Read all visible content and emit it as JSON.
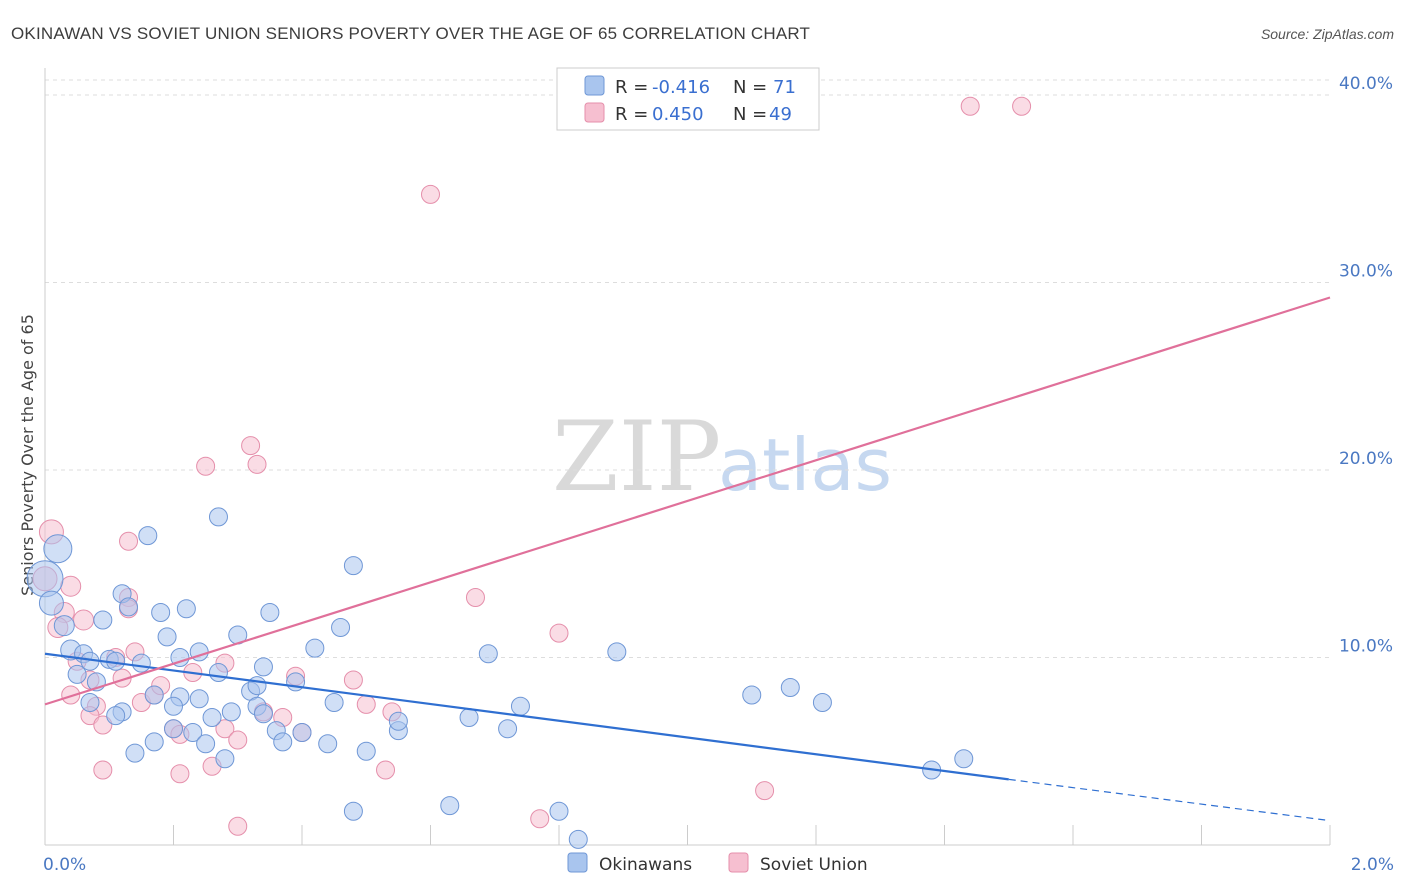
{
  "chart_data": {
    "type": "scatter",
    "title": "OKINAWAN VS SOVIET UNION SENIORS POVERTY OVER THE AGE OF 65 CORRELATION CHART",
    "source": "Source: ZipAtlas.com",
    "xlabel": "",
    "ylabel": "Seniors Poverty Over the Age of 65",
    "xlim": [
      0,
      2.0
    ],
    "ylim": [
      0,
      40.8
    ],
    "x_tick_labels": [
      "0.0%",
      "2.0%"
    ],
    "y_ticks": [
      10,
      20,
      30,
      40
    ],
    "y_tick_labels": [
      "10.0%",
      "20.0%",
      "30.0%",
      "40.0%"
    ],
    "watermark": {
      "zip": "ZIP",
      "atlas": "atlas"
    },
    "colors": {
      "okinawans_fill": "#a9c5ee",
      "okinawans_stroke": "#6f97d6",
      "okinawans_line": "#2f6fd1",
      "soviet_fill": "#f6bfd0",
      "soviet_stroke": "#e58fab",
      "soviet_line": "#e0709a",
      "grid": "#dddddd"
    },
    "legend": {
      "r_label": "R =",
      "n_label": "N =",
      "entries": [
        {
          "r": "-0.416",
          "n": "71"
        },
        {
          "r": "0.450",
          "n": "49"
        }
      ]
    },
    "series": [
      {
        "name": "Okinawans",
        "trend": {
          "x0": 0.0,
          "y0": 10.2,
          "x1": 1.5,
          "y1": 3.5,
          "dash_to_x": 2.0,
          "dash_to_y": 1.3
        },
        "points": [
          [
            0.0,
            14.2,
            18
          ],
          [
            0.02,
            15.8,
            14
          ],
          [
            0.01,
            12.9,
            12
          ],
          [
            0.03,
            11.7,
            10
          ],
          [
            0.04,
            10.4,
            10
          ],
          [
            0.06,
            10.2,
            9
          ],
          [
            0.05,
            9.1,
            9
          ],
          [
            0.09,
            12.0,
            9
          ],
          [
            0.07,
            9.8,
            9
          ],
          [
            0.08,
            8.7,
            9
          ],
          [
            0.07,
            7.6,
            9
          ],
          [
            0.1,
            9.9,
            9
          ],
          [
            0.11,
            9.8,
            9
          ],
          [
            0.12,
            7.1,
            9
          ],
          [
            0.11,
            6.9,
            9
          ],
          [
            0.12,
            13.4,
            9
          ],
          [
            0.13,
            12.7,
            9
          ],
          [
            0.15,
            9.7,
            9
          ],
          [
            0.16,
            16.5,
            9
          ],
          [
            0.18,
            12.4,
            9
          ],
          [
            0.19,
            11.1,
            9
          ],
          [
            0.17,
            8.0,
            9
          ],
          [
            0.14,
            4.9,
            9
          ],
          [
            0.17,
            5.5,
            9
          ],
          [
            0.2,
            6.2,
            9
          ],
          [
            0.21,
            10.0,
            9
          ],
          [
            0.22,
            12.6,
            9
          ],
          [
            0.21,
            7.9,
            9
          ],
          [
            0.23,
            6.0,
            9
          ],
          [
            0.24,
            7.8,
            9
          ],
          [
            0.24,
            10.3,
            9
          ],
          [
            0.25,
            5.4,
            9
          ],
          [
            0.26,
            6.8,
            9
          ],
          [
            0.27,
            17.5,
            9
          ],
          [
            0.27,
            9.2,
            9
          ],
          [
            0.28,
            4.6,
            9
          ],
          [
            0.29,
            7.1,
            9
          ],
          [
            0.3,
            11.2,
            9
          ],
          [
            0.32,
            8.2,
            9
          ],
          [
            0.33,
            7.4,
            9
          ],
          [
            0.34,
            9.5,
            9
          ],
          [
            0.34,
            7.0,
            9
          ],
          [
            0.35,
            12.4,
            9
          ],
          [
            0.36,
            6.1,
            9
          ],
          [
            0.37,
            5.5,
            9
          ],
          [
            0.39,
            8.7,
            9
          ],
          [
            0.4,
            6.0,
            9
          ],
          [
            0.42,
            10.5,
            9
          ],
          [
            0.44,
            5.4,
            9
          ],
          [
            0.45,
            7.6,
            9
          ],
          [
            0.46,
            11.6,
            9
          ],
          [
            0.48,
            14.9,
            9
          ],
          [
            0.48,
            1.8,
            9
          ],
          [
            0.5,
            5.0,
            9
          ],
          [
            0.55,
            6.1,
            9
          ],
          [
            0.55,
            6.6,
            9
          ],
          [
            0.63,
            2.1,
            9
          ],
          [
            0.66,
            6.8,
            9
          ],
          [
            0.69,
            10.2,
            9
          ],
          [
            0.72,
            6.2,
            9
          ],
          [
            0.74,
            7.4,
            9
          ],
          [
            0.8,
            1.8,
            9
          ],
          [
            0.83,
            0.3,
            9
          ],
          [
            0.89,
            10.3,
            9
          ],
          [
            1.1,
            8.0,
            9
          ],
          [
            1.16,
            8.4,
            9
          ],
          [
            1.21,
            7.6,
            9
          ],
          [
            1.38,
            4.0,
            9
          ],
          [
            1.43,
            4.6,
            9
          ],
          [
            0.33,
            8.5,
            9
          ],
          [
            0.2,
            7.4,
            9
          ]
        ]
      },
      {
        "name": "Soviet Union",
        "trend": {
          "x0": 0.0,
          "y0": 7.5,
          "x1": 2.0,
          "y1": 29.2
        },
        "points": [
          [
            0.01,
            16.7,
            12
          ],
          [
            0.0,
            14.2,
            12
          ],
          [
            0.04,
            13.8,
            10
          ],
          [
            0.03,
            12.4,
            10
          ],
          [
            0.06,
            12.0,
            10
          ],
          [
            0.02,
            11.6,
            10
          ],
          [
            0.05,
            9.8,
            9
          ],
          [
            0.04,
            8.0,
            9
          ],
          [
            0.07,
            8.8,
            9
          ],
          [
            0.08,
            7.4,
            9
          ],
          [
            0.07,
            6.9,
            9
          ],
          [
            0.09,
            6.4,
            9
          ],
          [
            0.09,
            4.0,
            9
          ],
          [
            0.11,
            10.0,
            9
          ],
          [
            0.12,
            8.9,
            9
          ],
          [
            0.13,
            13.2,
            9
          ],
          [
            0.13,
            12.6,
            9
          ],
          [
            0.14,
            10.3,
            9
          ],
          [
            0.13,
            16.2,
            9
          ],
          [
            0.15,
            7.6,
            9
          ],
          [
            0.17,
            8.0,
            9
          ],
          [
            0.18,
            8.5,
            9
          ],
          [
            0.2,
            6.2,
            9
          ],
          [
            0.21,
            5.9,
            9
          ],
          [
            0.21,
            3.8,
            9
          ],
          [
            0.23,
            9.2,
            9
          ],
          [
            0.25,
            20.2,
            9
          ],
          [
            0.26,
            4.2,
            9
          ],
          [
            0.28,
            6.2,
            9
          ],
          [
            0.28,
            9.7,
            9
          ],
          [
            0.3,
            5.6,
            9
          ],
          [
            0.3,
            1.0,
            9
          ],
          [
            0.32,
            21.3,
            9
          ],
          [
            0.33,
            20.3,
            9
          ],
          [
            0.34,
            7.1,
            9
          ],
          [
            0.37,
            6.8,
            9
          ],
          [
            0.39,
            9.0,
            9
          ],
          [
            0.4,
            6.0,
            9
          ],
          [
            0.48,
            8.8,
            9
          ],
          [
            0.5,
            7.5,
            9
          ],
          [
            0.53,
            4.0,
            9
          ],
          [
            0.54,
            7.1,
            9
          ],
          [
            0.6,
            34.7,
            9
          ],
          [
            0.67,
            13.2,
            9
          ],
          [
            0.77,
            1.4,
            9
          ],
          [
            0.8,
            11.3,
            9
          ],
          [
            1.12,
            2.9,
            9
          ],
          [
            1.44,
            39.4,
            9
          ],
          [
            1.52,
            39.4,
            9
          ]
        ]
      }
    ]
  }
}
